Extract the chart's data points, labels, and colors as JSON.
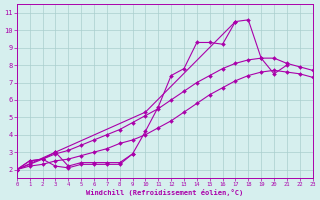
{
  "xlabel": "Windchill (Refroidissement éolien,°C)",
  "xlim": [
    0,
    23
  ],
  "ylim": [
    1.5,
    11.5
  ],
  "yticks": [
    2,
    3,
    4,
    5,
    6,
    7,
    8,
    9,
    10,
    11
  ],
  "xticks": [
    0,
    1,
    2,
    3,
    4,
    5,
    6,
    7,
    8,
    9,
    10,
    11,
    12,
    13,
    14,
    15,
    16,
    17,
    18,
    19,
    20,
    21,
    22,
    23
  ],
  "background_color": "#d6efee",
  "grid_color": "#aacece",
  "line_color": "#aa00aa",
  "series": [
    {
      "x": [
        0,
        1,
        2,
        3,
        4,
        5,
        6,
        7,
        8,
        9,
        10,
        11,
        12,
        13,
        14,
        15,
        16,
        17,
        18,
        19,
        20,
        21
      ],
      "y": [
        2.0,
        2.5,
        2.6,
        3.0,
        2.2,
        2.4,
        2.4,
        2.4,
        2.4,
        2.9,
        4.2,
        5.6,
        7.4,
        7.8,
        9.3,
        9.3,
        9.2,
        10.5,
        10.6,
        8.4,
        7.5,
        8.0
      ]
    },
    {
      "x": [
        0,
        3,
        10,
        17
      ],
      "y": [
        2.0,
        3.0,
        5.3,
        10.5
      ]
    },
    {
      "x": [
        0,
        1,
        2,
        3,
        4,
        5,
        6,
        7,
        8,
        9,
        10,
        11,
        12,
        13,
        14,
        15,
        16,
        17,
        18,
        19,
        20,
        21,
        22,
        23
      ],
      "y": [
        2.0,
        2.2,
        2.3,
        2.5,
        2.6,
        2.8,
        3.0,
        3.2,
        3.5,
        3.7,
        4.0,
        4.4,
        4.8,
        5.3,
        5.8,
        6.3,
        6.7,
        7.1,
        7.4,
        7.6,
        7.7,
        7.6,
        7.5,
        7.3
      ]
    },
    {
      "x": [
        0,
        1,
        2,
        3,
        4,
        5,
        6,
        7,
        8,
        9,
        10,
        11,
        12,
        13,
        14,
        15,
        16,
        17,
        18,
        19,
        20,
        21,
        22,
        23
      ],
      "y": [
        2.0,
        2.3,
        2.6,
        2.9,
        3.1,
        3.4,
        3.7,
        4.0,
        4.3,
        4.7,
        5.1,
        5.5,
        6.0,
        6.5,
        7.0,
        7.4,
        7.8,
        8.1,
        8.3,
        8.4,
        8.4,
        8.1,
        7.9,
        7.7
      ]
    },
    {
      "x": [
        0,
        1,
        2,
        3,
        4,
        5,
        6,
        7,
        8,
        9
      ],
      "y": [
        2.0,
        2.5,
        2.6,
        2.2,
        2.1,
        2.3,
        2.3,
        2.3,
        2.3,
        2.9
      ]
    }
  ]
}
